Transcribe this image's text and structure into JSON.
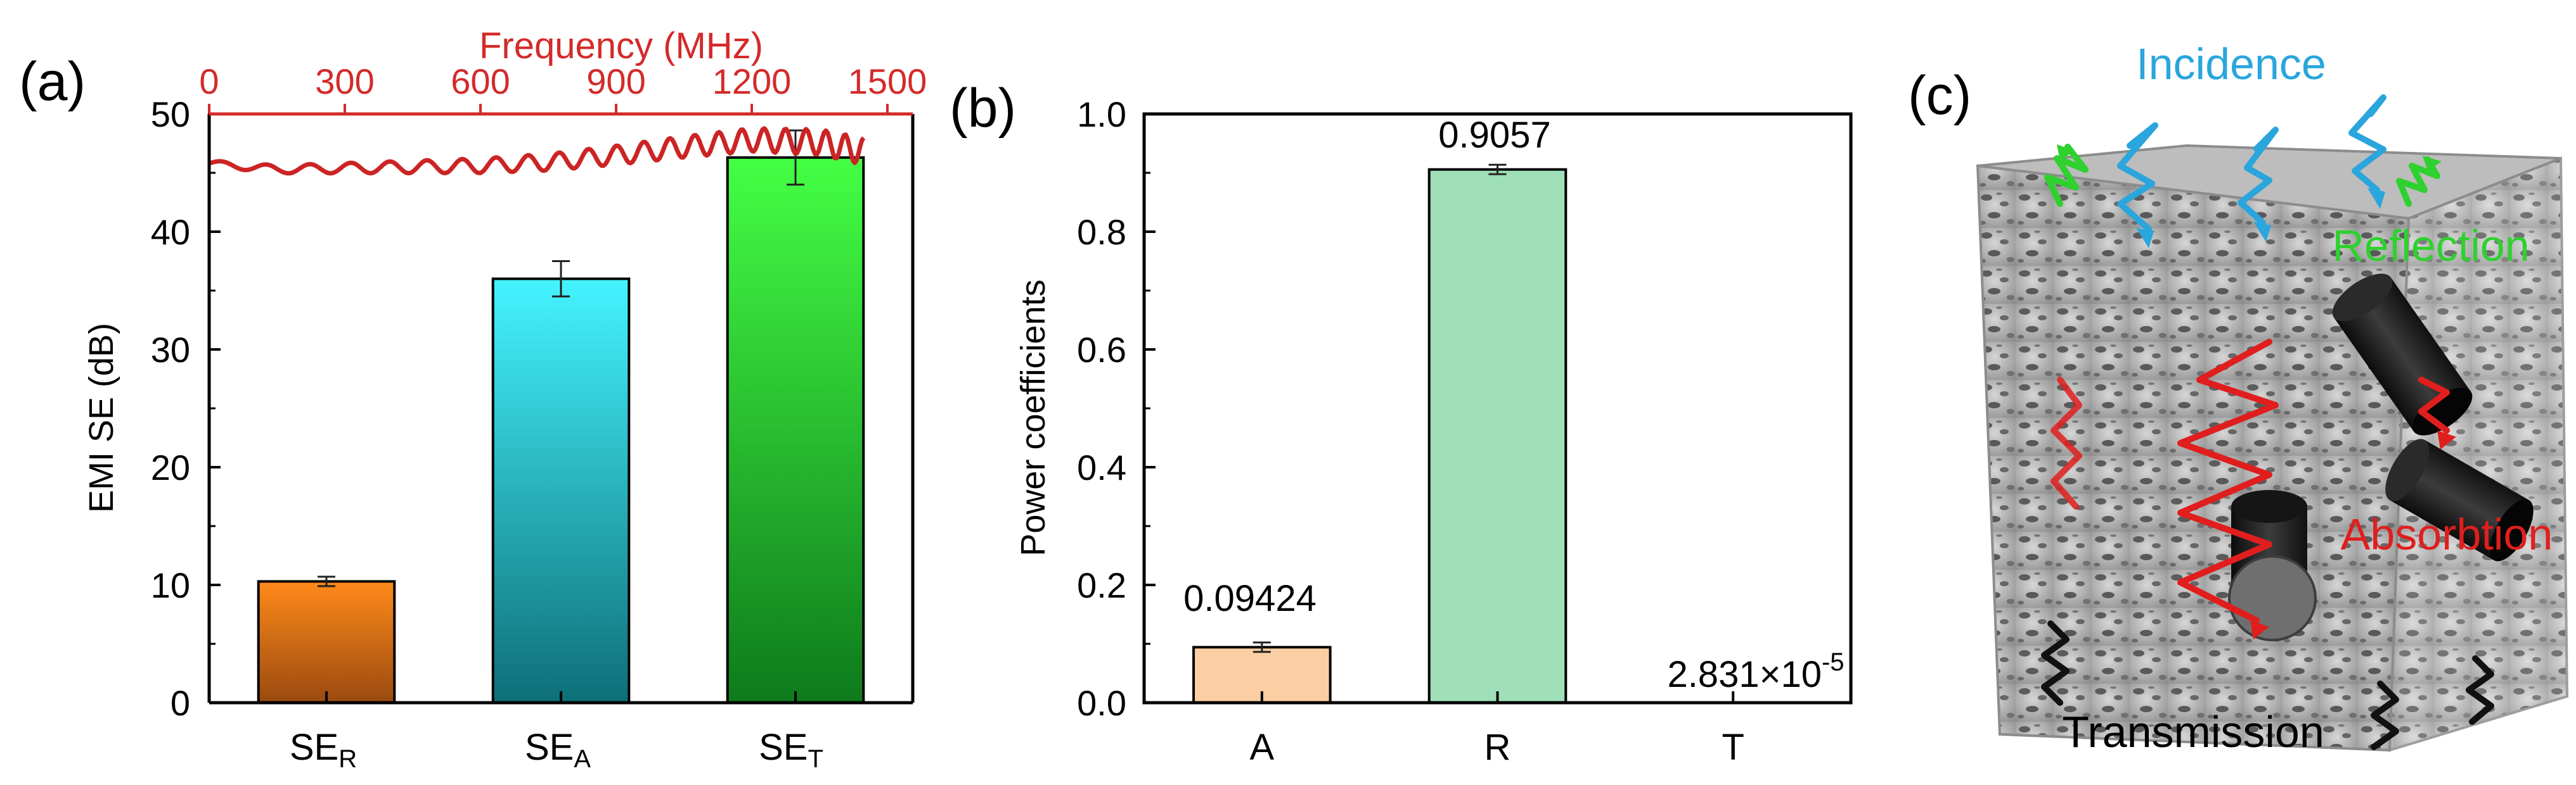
{
  "panels": {
    "a": {
      "label": "(a)",
      "top_axis": {
        "label": "Frequency (MHz)",
        "ticks": [
          "0",
          "300",
          "600",
          "900",
          "1200",
          "1500"
        ],
        "color": "#d42a2a"
      },
      "y_axis": {
        "label": "EMI SE (dB)",
        "ticks": [
          "0",
          "10",
          "20",
          "30",
          "40",
          "50"
        ]
      },
      "x_ticks": [
        {
          "main": "SE",
          "sub": "R"
        },
        {
          "main": "SE",
          "sub": "A"
        },
        {
          "main": "SE",
          "sub": "T"
        }
      ]
    },
    "b": {
      "label": "(b)",
      "y_axis": {
        "label": "Power coefficients",
        "ticks": [
          "0.0",
          "0.2",
          "0.4",
          "0.6",
          "0.8",
          "1.0"
        ]
      },
      "x_ticks": [
        "A",
        "R",
        "T"
      ],
      "value_labels": {
        "A": "0.09424",
        "R": "0.9057",
        "T_base": "2.831×10",
        "T_exp": "-5"
      }
    },
    "c": {
      "label": "(c)",
      "labels": {
        "incidence": "Incidence",
        "reflection": "Reflection",
        "absorbtion": "Absorbtion",
        "transmission": "Transmission"
      },
      "colors": {
        "incidence": "#2aa6dc",
        "reflection": "#2ed12e",
        "absorbtion": "#e01e1e",
        "transmission": "#111111",
        "foam": "#a9a9a9"
      }
    }
  },
  "chart_data": [
    {
      "type": "bar",
      "categories": [
        "SE_R",
        "SE_A",
        "SE_T"
      ],
      "values": [
        10.3,
        36.0,
        46.3
      ],
      "errors": [
        0.4,
        1.5,
        2.3
      ],
      "ylabel": "EMI SE (dB)",
      "ylim": [
        0,
        50
      ],
      "colors": [
        [
          "#ff8a1a",
          "#9a4a10"
        ],
        [
          "#44f4ff",
          "#0e6f78"
        ],
        [
          "#44ff44",
          "#0e7a1c"
        ]
      ],
      "secondary_line": {
        "xlabel": "Frequency (MHz)",
        "xlim": [
          0,
          1500
        ],
        "x": [
          0,
          150,
          300,
          450,
          600,
          750,
          900,
          1050,
          1200,
          1350,
          1450
        ],
        "y": [
          45.8,
          45.3,
          45.4,
          45.5,
          45.6,
          45.9,
          46.5,
          47.2,
          47.8,
          47.6,
          46.8
        ],
        "color": "#cc2424"
      },
      "grid": false
    },
    {
      "type": "bar",
      "categories": [
        "A",
        "R",
        "T"
      ],
      "values": [
        0.09424,
        0.9057,
        2.831e-05
      ],
      "errors": [
        0.008,
        0.008,
        0
      ],
      "ylabel": "Power coefficients",
      "ylim": [
        0,
        1.0
      ],
      "colors": [
        "#fbcfa3",
        "#9fe0b8",
        "#ffffff"
      ],
      "grid": false
    }
  ]
}
